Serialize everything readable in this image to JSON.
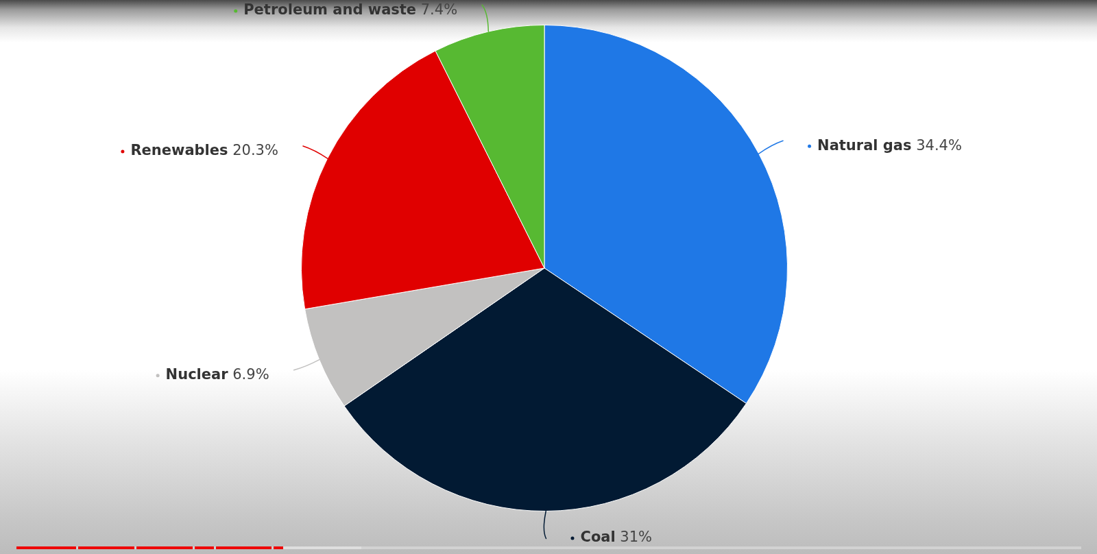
{
  "chart_data": {
    "type": "pie",
    "categories": [
      "Natural gas",
      "Coal",
      "Nuclear",
      "Renewables",
      "Petroleum and waste"
    ],
    "values": [
      34.4,
      31,
      6.9,
      20.3,
      7.4
    ],
    "colors": [
      "#1f78e6",
      "#021a33",
      "#c2c1c0",
      "#e00000",
      "#57b932"
    ],
    "value_labels": [
      "34.4%",
      "31%",
      "6.9%",
      "20.3%",
      "7.4%"
    ]
  }
}
